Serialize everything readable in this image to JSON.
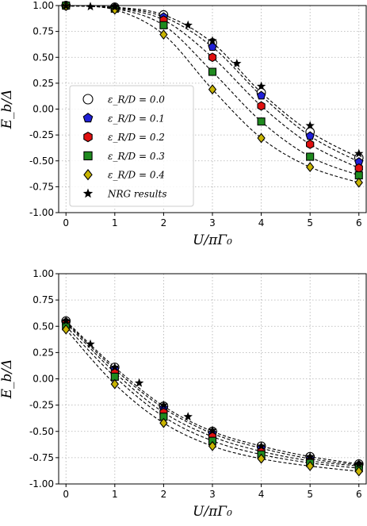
{
  "chart_data": [
    {
      "type": "line",
      "title": "",
      "xlabel": "U/πΓ₀",
      "ylabel": "E_b/Δ",
      "xlim": [
        -0.15,
        6.15
      ],
      "ylim": [
        -1.0,
        1.0
      ],
      "xticks": [
        "0",
        "1",
        "2",
        "3",
        "4",
        "5",
        "6"
      ],
      "yticks": [
        "1.00",
        "0.75",
        "0.50",
        "0.25",
        "0.00",
        "-0.25",
        "-0.50",
        "-0.75",
        "-1.00"
      ],
      "grid": true,
      "legend_position": "center-left",
      "x": [
        0,
        1,
        2,
        3,
        4,
        5,
        6
      ],
      "series": [
        {
          "name": "ε_R/D = 0.0",
          "marker": "circle",
          "color": "#ffffff",
          "values": [
            1.0,
            0.985,
            0.91,
            0.64,
            0.16,
            -0.22,
            -0.47
          ]
        },
        {
          "name": "ε_R/D = 0.1",
          "marker": "pentagon",
          "color": "#1f1fd6",
          "values": [
            1.0,
            0.98,
            0.89,
            0.6,
            0.13,
            -0.26,
            -0.51
          ]
        },
        {
          "name": "ε_R/D = 0.2",
          "marker": "hexagon",
          "color": "#e01010",
          "values": [
            1.0,
            0.975,
            0.86,
            0.5,
            0.03,
            -0.34,
            -0.57
          ]
        },
        {
          "name": "ε_R/D = 0.3",
          "marker": "square",
          "color": "#1f8a1f",
          "values": [
            1.0,
            0.97,
            0.81,
            0.36,
            -0.12,
            -0.46,
            -0.64
          ]
        },
        {
          "name": "ε_R/D = 0.4",
          "marker": "diamond",
          "color": "#c8b400",
          "values": [
            0.995,
            0.96,
            0.72,
            0.19,
            -0.28,
            -0.56,
            -0.71
          ]
        }
      ],
      "nrg": {
        "name": "NRG results",
        "marker": "star",
        "x": [
          0,
          0.5,
          1,
          2.5,
          3,
          3.5,
          4,
          5,
          6
        ],
        "values": [
          0.995,
          0.99,
          0.985,
          0.81,
          0.66,
          0.44,
          0.22,
          -0.16,
          -0.43
        ]
      }
    },
    {
      "type": "line",
      "title": "",
      "xlabel": "U/πΓ₀",
      "ylabel": "E_b/Δ",
      "xlim": [
        -0.15,
        6.15
      ],
      "ylim": [
        -1.0,
        1.0
      ],
      "xticks": [
        "0",
        "1",
        "2",
        "3",
        "4",
        "5",
        "6"
      ],
      "yticks": [
        "1.00",
        "0.75",
        "0.50",
        "0.25",
        "0.00",
        "-0.25",
        "-0.50",
        "-0.75",
        "-1.00"
      ],
      "grid": true,
      "x": [
        0,
        1,
        2,
        3,
        4,
        5,
        6
      ],
      "series": [
        {
          "name": "ε_R/D = 0.0",
          "marker": "circle",
          "color": "#ffffff",
          "values": [
            0.55,
            0.11,
            -0.26,
            -0.5,
            -0.64,
            -0.74,
            -0.81
          ]
        },
        {
          "name": "ε_R/D = 0.1",
          "marker": "pentagon",
          "color": "#1f1fd6",
          "values": [
            0.54,
            0.09,
            -0.28,
            -0.52,
            -0.66,
            -0.76,
            -0.82
          ]
        },
        {
          "name": "ε_R/D = 0.2",
          "marker": "hexagon",
          "color": "#e01010",
          "values": [
            0.53,
            0.06,
            -0.32,
            -0.55,
            -0.69,
            -0.78,
            -0.83
          ]
        },
        {
          "name": "ε_R/D = 0.3",
          "marker": "square",
          "color": "#1f8a1f",
          "values": [
            0.5,
            0.02,
            -0.36,
            -0.59,
            -0.72,
            -0.8,
            -0.85
          ]
        },
        {
          "name": "ε_R/D = 0.4",
          "marker": "diamond",
          "color": "#c8b400",
          "values": [
            0.47,
            -0.05,
            -0.42,
            -0.64,
            -0.76,
            -0.83,
            -0.88
          ]
        }
      ],
      "nrg": {
        "name": "NRG results",
        "marker": "star",
        "x": [
          0,
          0.5,
          1,
          1.5,
          2,
          2.5,
          3,
          4,
          5,
          6
        ],
        "values": [
          0.55,
          0.33,
          0.11,
          -0.04,
          -0.25,
          -0.36,
          -0.49,
          -0.64,
          -0.74,
          -0.81
        ]
      }
    }
  ]
}
